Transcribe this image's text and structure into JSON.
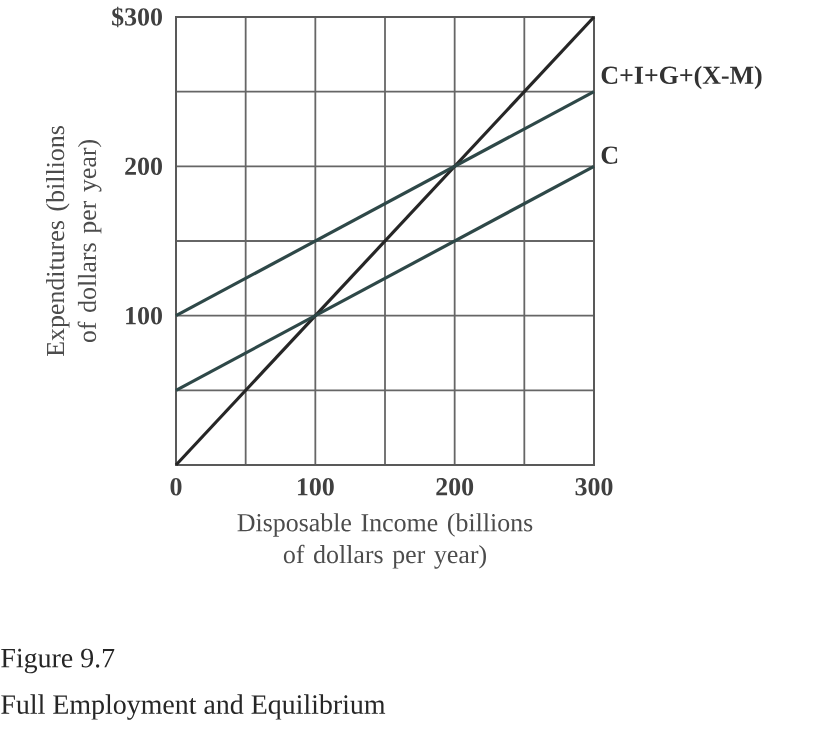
{
  "chart_data": {
    "type": "line",
    "xlabel": "Disposable Income (billions of dollars per year)",
    "ylabel": "Expenditures (billions of dollars per year)",
    "annotations": [
      "Figure 9.7",
      "Full Employment and Equilibrium"
    ],
    "series": [
      {
        "color": "#262626",
        "values": [
          0,
          300
        ]
      },
      {
        "name": "C+I+G+(X-M)",
        "color": "#2e4848",
        "values": [
          100,
          250
        ]
      },
      {
        "name": "C",
        "color": "#2e4848",
        "values": [
          50,
          200
        ]
      }
    ],
    "x": [
      0,
      300
    ],
    "xlim": [
      0,
      300
    ],
    "ylim": [
      0,
      300
    ],
    "xticks": [
      0,
      {
        "value": 50,
        "label": null
      },
      100,
      {
        "value": 150,
        "label": null
      },
      200,
      {
        "value": 250,
        "label": null
      },
      300
    ],
    "yticks": [
      {
        "value": 50,
        "label": null
      },
      100,
      {
        "value": 150,
        "label": null
      },
      200,
      {
        "value": 250,
        "label": null
      },
      {
        "value": 300,
        "label": "$300"
      }
    ],
    "grid": true,
    "legend": false,
    "marker": "none",
    "line_style": "solid"
  }
}
